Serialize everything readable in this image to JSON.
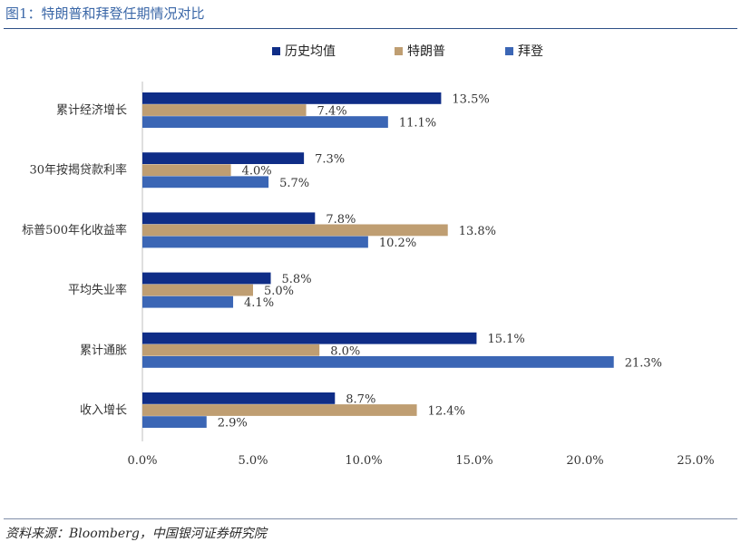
{
  "header": {
    "title": "图1：特朗普和拜登任期情况对比"
  },
  "footer": {
    "source": "资料来源：Bloomberg，中国银河证券研究院"
  },
  "chart_data": {
    "type": "bar",
    "orientation": "horizontal",
    "categories": [
      "累计经济增长",
      "30年按揭贷款利率",
      "标普500年化收益率",
      "平均失业率",
      "累计通胀",
      "收入增长"
    ],
    "series": [
      {
        "name": "历史均值",
        "color": "#0f2d87",
        "values": [
          13.5,
          7.3,
          7.8,
          5.8,
          15.1,
          8.7
        ]
      },
      {
        "name": "特朗普",
        "color": "#bf9e72",
        "values": [
          7.4,
          4.0,
          13.8,
          5.0,
          8.0,
          12.4
        ]
      },
      {
        "name": "拜登",
        "color": "#3b66b5",
        "values": [
          11.1,
          5.7,
          10.2,
          4.1,
          21.3,
          2.9
        ]
      }
    ],
    "value_suffix": "%",
    "xlim": [
      0,
      25
    ],
    "xticks": [
      "0.0%",
      "5.0%",
      "10.0%",
      "15.0%",
      "20.0%",
      "25.0%"
    ],
    "xtick_values": [
      0,
      5,
      10,
      15,
      20,
      25
    ],
    "legend_position": "top",
    "grid": false
  }
}
